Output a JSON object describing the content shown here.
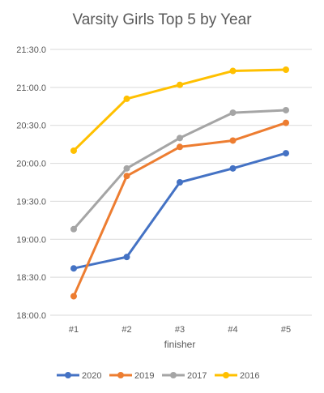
{
  "chart_data": {
    "type": "line",
    "title": "Varsity Girls Top 5 by Year",
    "xlabel": "finisher",
    "ylabel": "",
    "categories": [
      "#1",
      "#2",
      "#3",
      "#4",
      "#5"
    ],
    "y_ticks": [
      "18:00.0",
      "18:30.0",
      "19:00.0",
      "19:30.0",
      "20:00.0",
      "20:30.0",
      "21:00.0",
      "21:30.0"
    ],
    "ylim_seconds": [
      1080,
      1290
    ],
    "y_tick_step_seconds": 30,
    "grid": true,
    "legend_position": "bottom",
    "series": [
      {
        "name": "2020",
        "color": "#4472C4",
        "values_seconds": [
          1117,
          1126,
          1185,
          1196,
          1208
        ]
      },
      {
        "name": "2019",
        "color": "#ED7D31",
        "values_seconds": [
          1095,
          1190,
          1213,
          1218,
          1232
        ]
      },
      {
        "name": "2017",
        "color": "#A5A5A5",
        "values_seconds": [
          1148,
          1196,
          1220,
          1240,
          1242
        ]
      },
      {
        "name": "2016",
        "color": "#FFC000",
        "values_seconds": [
          1210,
          1251,
          1262,
          1273,
          1274
        ]
      }
    ]
  }
}
